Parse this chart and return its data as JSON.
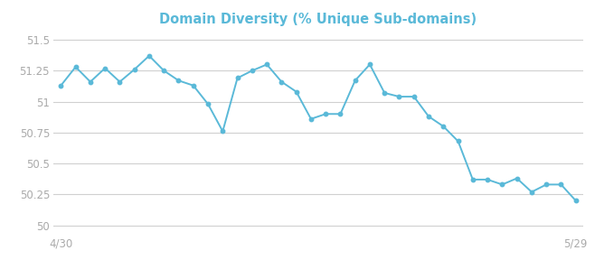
{
  "title": "Domain Diversity (% Unique Sub-domains)",
  "title_color": "#5ab9d8",
  "line_color": "#5ab9d8",
  "marker_color": "#5ab9d8",
  "background_color": "#ffffff",
  "grid_color": "#d0d0d0",
  "tick_label_color": "#aaaaaa",
  "xlabel_left": "4/30",
  "xlabel_right": "5/29",
  "ylim": [
    49.93,
    51.56
  ],
  "yticks": [
    50,
    50.25,
    50.5,
    50.75,
    51,
    51.25,
    51.5
  ],
  "values": [
    51.13,
    51.28,
    51.16,
    51.27,
    51.16,
    51.26,
    51.37,
    51.25,
    51.17,
    51.13,
    50.98,
    50.76,
    51.19,
    51.25,
    51.3,
    51.16,
    51.08,
    50.86,
    50.9,
    50.9,
    51.17,
    51.3,
    51.07,
    51.04,
    51.04,
    50.88,
    50.8,
    50.68,
    50.37,
    50.37,
    50.33,
    50.38,
    50.27,
    50.33,
    50.33,
    50.2
  ],
  "title_fontsize": 10.5,
  "tick_fontsize": 8.5
}
